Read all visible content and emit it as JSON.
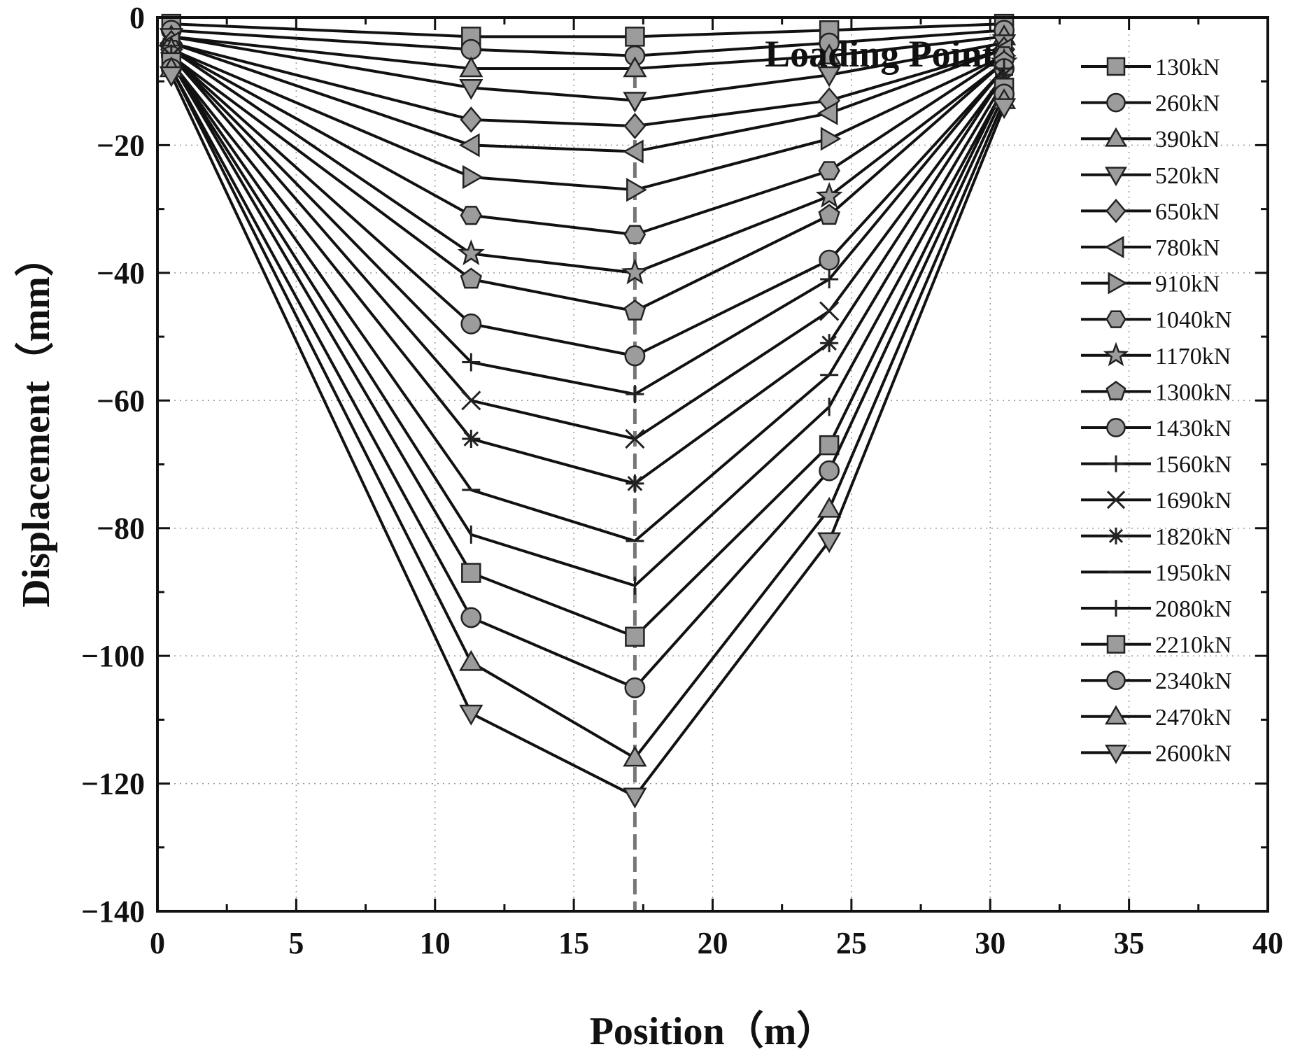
{
  "chart_data": {
    "type": "line",
    "xlabel": "Position（m）",
    "ylabel": "Displacement（mm）",
    "xlim": [
      0,
      40
    ],
    "ylim": [
      -140,
      0
    ],
    "x_ticks": [
      "0",
      "5",
      "10",
      "15",
      "20",
      "25",
      "30",
      "35",
      "40"
    ],
    "y_ticks": [
      "0",
      "-20",
      "-40",
      "-60",
      "-80",
      "-100",
      "-120",
      "-140"
    ],
    "grid": true,
    "legend_position": "right",
    "annotations": [
      {
        "text": "Loading Point",
        "x": 17.2
      }
    ],
    "x": [
      0.5,
      11.3,
      17.2,
      24.2,
      30.5
    ],
    "series": [
      {
        "name": "130kN",
        "marker": "square",
        "values": [
          -1,
          -3,
          -3,
          -2,
          -1
        ]
      },
      {
        "name": "260kN",
        "marker": "circle",
        "values": [
          -2,
          -5,
          -6,
          -4,
          -2
        ]
      },
      {
        "name": "390kN",
        "marker": "triangle-up",
        "values": [
          -3,
          -8,
          -8,
          -6,
          -3
        ]
      },
      {
        "name": "520kN",
        "marker": "triangle-down",
        "values": [
          -3,
          -11,
          -13,
          -9,
          -4
        ]
      },
      {
        "name": "650kN",
        "marker": "diamond",
        "values": [
          -4,
          -16,
          -17,
          -13,
          -5
        ]
      },
      {
        "name": "780kN",
        "marker": "triangle-left",
        "values": [
          -4,
          -20,
          -21,
          -15,
          -5
        ]
      },
      {
        "name": "910kN",
        "marker": "triangle-right",
        "values": [
          -5,
          -25,
          -27,
          -19,
          -6
        ]
      },
      {
        "name": "1040kN",
        "marker": "hexagon",
        "values": [
          -5,
          -31,
          -34,
          -24,
          -6
        ]
      },
      {
        "name": "1170kN",
        "marker": "star",
        "values": [
          -5,
          -37,
          -40,
          -28,
          -7
        ]
      },
      {
        "name": "1300kN",
        "marker": "pentagon",
        "values": [
          -6,
          -41,
          -46,
          -31,
          -7
        ]
      },
      {
        "name": "1430kN",
        "marker": "circle",
        "values": [
          -6,
          -48,
          -53,
          -38,
          -8
        ]
      },
      {
        "name": "1560kN",
        "marker": "plus",
        "values": [
          -6,
          -54,
          -59,
          -41,
          -8
        ]
      },
      {
        "name": "1690kN",
        "marker": "x",
        "values": [
          -6,
          -60,
          -66,
          -46,
          -9
        ]
      },
      {
        "name": "1820kN",
        "marker": "asterisk",
        "values": [
          -7,
          -66,
          -73,
          -51,
          -9
        ]
      },
      {
        "name": "1950kN",
        "marker": "hline",
        "values": [
          -7,
          -74,
          -82,
          -56,
          -10
        ]
      },
      {
        "name": "2080kN",
        "marker": "vline",
        "values": [
          -7,
          -81,
          -89,
          -61,
          -11
        ]
      },
      {
        "name": "2210kN",
        "marker": "square",
        "values": [
          -7,
          -87,
          -97,
          -67,
          -11
        ]
      },
      {
        "name": "2340kN",
        "marker": "circle",
        "values": [
          -8,
          -94,
          -105,
          -71,
          -12
        ]
      },
      {
        "name": "2470kN",
        "marker": "triangle-up",
        "values": [
          -8,
          -101,
          -116,
          -77,
          -13
        ]
      },
      {
        "name": "2600kN",
        "marker": "triangle-down",
        "values": [
          -9,
          -109,
          -122,
          -82,
          -14
        ]
      }
    ]
  }
}
